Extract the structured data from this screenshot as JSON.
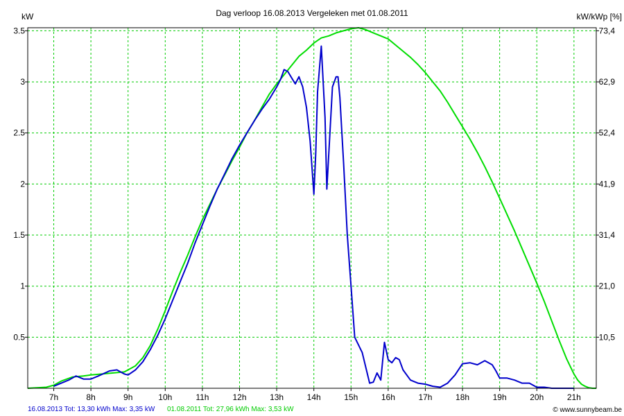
{
  "chart_data": {
    "type": "line",
    "title": "Dag  verloop 16.08.2013   Vergeleken met 01.08.2011",
    "ylabel_left": "kW",
    "ylabel_right": "kW/kWp [%]",
    "xlim": [
      6.3,
      21.6
    ],
    "ylim": [
      0,
      3.53
    ],
    "x_ticks": [
      {
        "value": 7,
        "label": "7h"
      },
      {
        "value": 8,
        "label": "8h"
      },
      {
        "value": 9,
        "label": "9h"
      },
      {
        "value": 10,
        "label": "10h"
      },
      {
        "value": 11,
        "label": "11h"
      },
      {
        "value": 12,
        "label": "12h"
      },
      {
        "value": 13,
        "label": "13h"
      },
      {
        "value": 14,
        "label": "14h"
      },
      {
        "value": 15,
        "label": "15h"
      },
      {
        "value": 16,
        "label": "16h"
      },
      {
        "value": 17,
        "label": "17h"
      },
      {
        "value": 18,
        "label": "18h"
      },
      {
        "value": 19,
        "label": "19h"
      },
      {
        "value": 20,
        "label": "20h"
      },
      {
        "value": 21,
        "label": "21h"
      }
    ],
    "y_ticks_left": [
      {
        "value": 0.5,
        "label": "0.5"
      },
      {
        "value": 1,
        "label": "1"
      },
      {
        "value": 1.5,
        "label": "1.5"
      },
      {
        "value": 2,
        "label": "2"
      },
      {
        "value": 2.5,
        "label": "2.5"
      },
      {
        "value": 3,
        "label": "3"
      },
      {
        "value": 3.5,
        "label": "3.5"
      }
    ],
    "y_ticks_right": [
      {
        "value": 0.5,
        "label": "10,5"
      },
      {
        "value": 1,
        "label": "21,0"
      },
      {
        "value": 1.5,
        "label": "31,4"
      },
      {
        "value": 2,
        "label": "41,9"
      },
      {
        "value": 2.5,
        "label": "52,4"
      },
      {
        "value": 3,
        "label": "62,9"
      },
      {
        "value": 3.5,
        "label": "73,4"
      }
    ],
    "grid": true,
    "series": [
      {
        "key": "reference",
        "color": "#00dd00",
        "x": [
          6.3,
          6.8,
          7.0,
          7.2,
          7.5,
          7.8,
          8.0,
          8.3,
          8.6,
          8.9,
          9.0,
          9.2,
          9.4,
          9.6,
          9.8,
          10.0,
          10.2,
          10.4,
          10.6,
          10.8,
          11.0,
          11.2,
          11.4,
          11.6,
          11.8,
          12.0,
          12.2,
          12.4,
          12.6,
          12.8,
          13.0,
          13.2,
          13.4,
          13.6,
          13.8,
          14.0,
          14.2,
          14.4,
          14.6,
          14.8,
          15.0,
          15.2,
          15.4,
          15.6,
          15.8,
          16.0,
          16.2,
          16.4,
          16.6,
          16.8,
          17.0,
          17.2,
          17.4,
          17.6,
          17.8,
          18.0,
          18.2,
          18.4,
          18.6,
          18.8,
          19.0,
          19.2,
          19.4,
          19.6,
          19.8,
          20.0,
          20.2,
          20.4,
          20.6,
          20.8,
          21.0,
          21.1,
          21.2,
          21.3,
          21.4,
          21.5,
          21.6
        ],
        "values": [
          0.0,
          0.01,
          0.03,
          0.07,
          0.11,
          0.12,
          0.13,
          0.14,
          0.15,
          0.16,
          0.18,
          0.22,
          0.3,
          0.42,
          0.58,
          0.76,
          0.95,
          1.13,
          1.3,
          1.48,
          1.65,
          1.8,
          1.95,
          2.09,
          2.23,
          2.36,
          2.5,
          2.62,
          2.75,
          2.88,
          2.98,
          3.07,
          3.16,
          3.25,
          3.31,
          3.38,
          3.43,
          3.45,
          3.48,
          3.5,
          3.52,
          3.53,
          3.51,
          3.48,
          3.45,
          3.42,
          3.36,
          3.3,
          3.24,
          3.17,
          3.09,
          3.0,
          2.91,
          2.8,
          2.68,
          2.56,
          2.44,
          2.31,
          2.17,
          2.02,
          1.86,
          1.7,
          1.54,
          1.37,
          1.2,
          1.03,
          0.85,
          0.66,
          0.47,
          0.29,
          0.14,
          0.08,
          0.04,
          0.02,
          0.005,
          0.0,
          0.0
        ]
      },
      {
        "key": "today",
        "color": "#0000cc",
        "x": [
          7.0,
          7.4,
          7.6,
          7.8,
          8.0,
          8.2,
          8.5,
          8.7,
          8.9,
          9.0,
          9.2,
          9.4,
          9.6,
          9.8,
          10.0,
          10.2,
          10.4,
          10.6,
          10.8,
          11.0,
          11.2,
          11.4,
          11.6,
          11.8,
          12.0,
          12.2,
          12.4,
          12.6,
          12.8,
          13.0,
          13.1,
          13.2,
          13.3,
          13.5,
          13.6,
          13.7,
          13.8,
          13.9,
          14.0,
          14.05,
          14.1,
          14.2,
          14.3,
          14.35,
          14.5,
          14.6,
          14.65,
          14.7,
          14.8,
          14.9,
          15.0,
          15.1,
          15.3,
          15.5,
          15.6,
          15.7,
          15.8,
          15.9,
          16.0,
          16.1,
          16.2,
          16.3,
          16.4,
          16.6,
          16.8,
          17.0,
          17.2,
          17.4,
          17.6,
          17.8,
          18.0,
          18.2,
          18.4,
          18.6,
          18.8,
          18.9,
          19.0,
          19.2,
          19.4,
          19.6,
          19.8,
          20.0,
          20.2,
          20.4,
          20.6,
          20.8,
          21.0
        ],
        "values": [
          0.02,
          0.08,
          0.12,
          0.09,
          0.09,
          0.12,
          0.17,
          0.18,
          0.14,
          0.13,
          0.18,
          0.26,
          0.38,
          0.52,
          0.68,
          0.86,
          1.04,
          1.22,
          1.42,
          1.6,
          1.78,
          1.95,
          2.1,
          2.25,
          2.38,
          2.5,
          2.62,
          2.73,
          2.83,
          2.95,
          3.02,
          3.12,
          3.1,
          2.98,
          3.05,
          2.95,
          2.75,
          2.42,
          1.9,
          2.3,
          2.9,
          3.35,
          2.65,
          1.95,
          2.95,
          3.05,
          3.05,
          2.85,
          2.2,
          1.5,
          1.0,
          0.5,
          0.35,
          0.05,
          0.06,
          0.15,
          0.08,
          0.45,
          0.28,
          0.25,
          0.3,
          0.28,
          0.18,
          0.08,
          0.05,
          0.04,
          0.02,
          0.01,
          0.05,
          0.13,
          0.24,
          0.25,
          0.23,
          0.27,
          0.23,
          0.17,
          0.1,
          0.1,
          0.08,
          0.05,
          0.05,
          0.01,
          0.01,
          0.0,
          0.0,
          0.0,
          0.0
        ]
      }
    ]
  },
  "footer": {
    "today_text": "16.08.2013 Tot: 13,30 kWh Max: 3,35 kW",
    "reference_text": "01.08.2011 Tot: 27,96 kWh Max: 3,53 kW",
    "credit": "© www.sunnybeam.be"
  },
  "colors": {
    "grid": "#00cc00",
    "today": "#0000cc",
    "reference": "#00dd00"
  }
}
